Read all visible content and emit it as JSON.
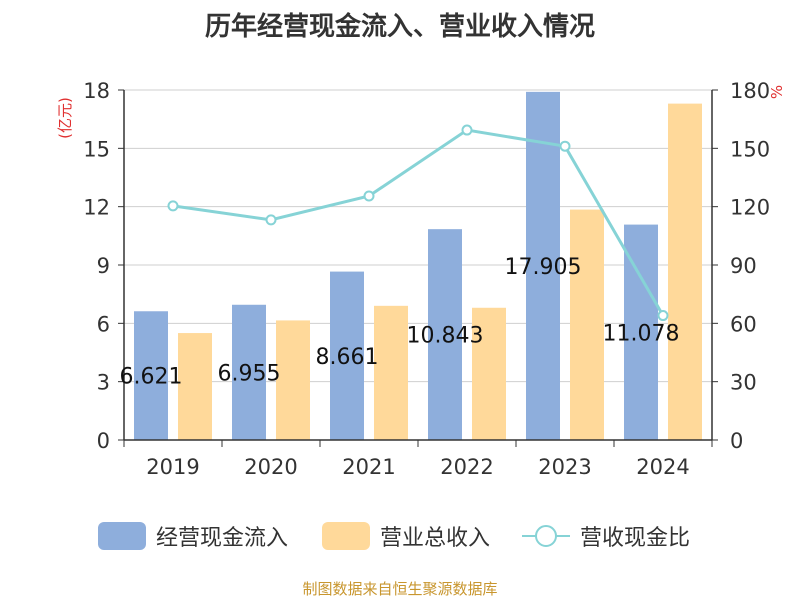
{
  "chart_data": {
    "type": "bar",
    "title": "历年经营现金流入、营业收入情况",
    "categories": [
      "2019",
      "2020",
      "2021",
      "2022",
      "2023",
      "2024"
    ],
    "y_left": {
      "unit_label": "(亿元)",
      "ylim": [
        0,
        18
      ],
      "ticks": [
        "0",
        "3",
        "6",
        "9",
        "12",
        "15",
        "18"
      ]
    },
    "y_right": {
      "unit_label": "%",
      "ylim": [
        0,
        180
      ],
      "ticks": [
        "0",
        "30",
        "60",
        "90",
        "120",
        "150",
        "180"
      ]
    },
    "series": [
      {
        "name": "经营现金流入",
        "type": "bar",
        "axis": "left",
        "color": "#8eaedc",
        "values": [
          6.621,
          6.955,
          8.661,
          10.843,
          17.905,
          11.078
        ],
        "labels": [
          "6.621",
          "6.955",
          "8.661",
          "10.843",
          "17.905",
          "11.078"
        ]
      },
      {
        "name": "营业总收入",
        "type": "bar",
        "axis": "left",
        "color": "#ffd99a",
        "values": [
          5.5,
          6.15,
          6.9,
          6.8,
          11.85,
          17.3
        ]
      },
      {
        "name": "营收现金比",
        "type": "line",
        "axis": "right",
        "color": "#86d3d6",
        "values": [
          120.4,
          113.2,
          125.5,
          159.4,
          151.1,
          64.0
        ]
      }
    ],
    "grid": true,
    "legend_position": "bottom"
  },
  "source": "制图数据来自恒生聚源数据库"
}
